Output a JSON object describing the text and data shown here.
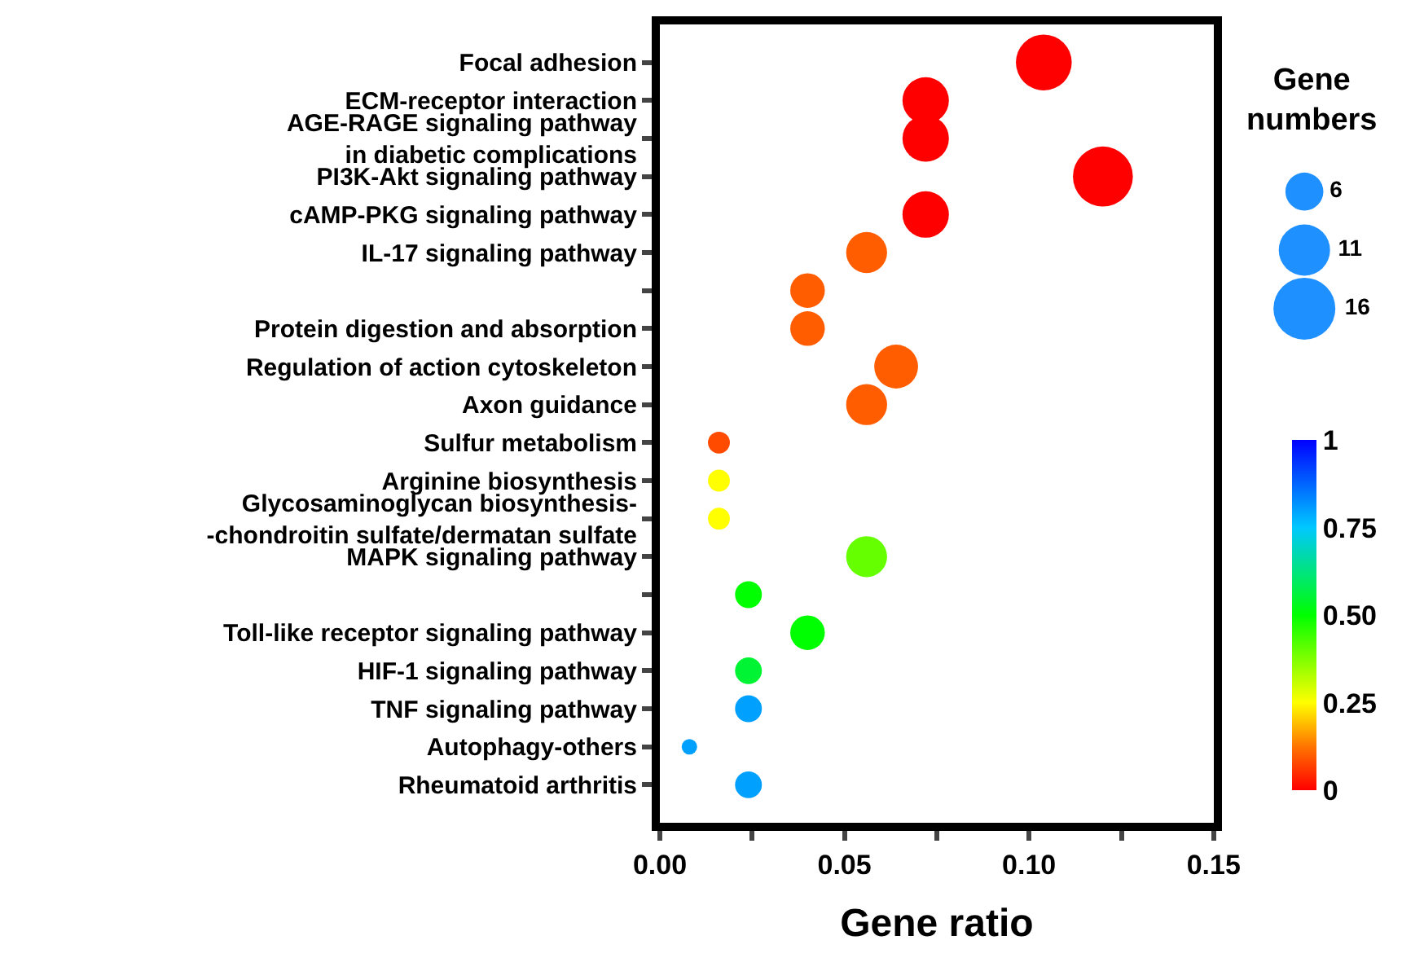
{
  "chart_data": {
    "type": "bubble",
    "orientation": "horizontal",
    "categories": [
      "Focal adhesion",
      "ECM-receptor interaction",
      "AGE-RAGE signaling pathway\nin diabetic complications",
      "PI3K-Akt signaling pathway",
      "cAMP-PKG signaling pathway",
      "IL-17 signaling pathway",
      null,
      "Protein digestion and absorption",
      "Regulation of action cytoskeleton",
      "Axon guidance",
      "Sulfur metabolism",
      "Arginine biosynthesis",
      "Glycosaminoglycan biosynthesis-\n-chondroitin sulfate/dermatan sulfate",
      "MAPK signaling pathway",
      null,
      "Toll-like receptor signaling pathway",
      "HIF-1 signaling pathway",
      "TNF signaling pathway",
      "Autophagy-others",
      "Rheumatoid arthritis"
    ],
    "values": [
      0.104,
      0.072,
      0.072,
      0.12,
      0.072,
      0.056,
      0.04,
      0.04,
      0.064,
      0.056,
      0.016,
      0.016,
      0.016,
      0.056,
      0.024,
      0.04,
      0.024,
      0.024,
      0.008,
      0.024
    ],
    "sizes": [
      13,
      9,
      9,
      15,
      9,
      7,
      5,
      5,
      8,
      7,
      2,
      2,
      2,
      7,
      3,
      5,
      3,
      3,
      1,
      3
    ],
    "cvalues": [
      0,
      0,
      0,
      0,
      0,
      0.1,
      0.1,
      0.1,
      0.1,
      0.1,
      0.08,
      0.25,
      0.25,
      0.4,
      0.5,
      0.5,
      0.55,
      0.8,
      0.8,
      0.8
    ],
    "size_legend": [
      6,
      11,
      16
    ],
    "legend_title": "Gene numbers",
    "xlabel": "Gene ratio",
    "xlim": [
      0,
      0.15
    ],
    "xticks": [
      {
        "value": 0,
        "label": "0.00"
      },
      {
        "value": 0.025,
        "label": null
      },
      {
        "value": 0.05,
        "label": "0.05"
      },
      {
        "value": 0.075,
        "label": null
      },
      {
        "value": 0.1,
        "label": "0.10"
      },
      {
        "value": 0.125,
        "label": null
      },
      {
        "value": 0.15,
        "label": "0.15"
      }
    ],
    "clim": [
      0,
      1
    ],
    "cticks": [
      0,
      0.25,
      {
        "value": 0.5,
        "label": "0.50"
      },
      0.75,
      1
    ]
  }
}
